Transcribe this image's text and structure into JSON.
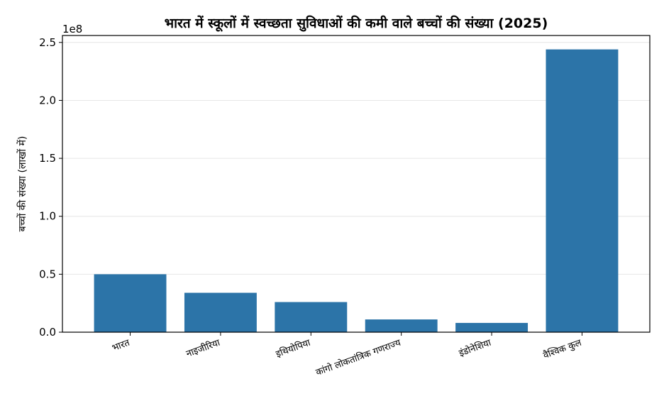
{
  "chart_data": {
    "type": "bar",
    "title": "भारत में स्कूलों में स्वच्छता सुविधाओं की कमी वाले बच्चों की संख्या (2025)",
    "xlabel": "",
    "ylabel": "बच्चों की संख्या (लाखों में)",
    "y_offset_text": "1e8",
    "categories": [
      "भारत",
      "नाइजीरिया",
      "इथियोपिया",
      "कांगो लोकतांत्रिक गणराज्य",
      "इंडोनेशिया",
      "वैश्विक कुल"
    ],
    "values": [
      50000000,
      34000000,
      26000000,
      11000000,
      8000000,
      244000000
    ],
    "ylim": [
      0,
      256000000
    ],
    "yticks": [
      0,
      50000000,
      100000000,
      150000000,
      200000000,
      250000000
    ],
    "ytick_labels": [
      "0.0",
      "0.5",
      "1.0",
      "1.5",
      "2.0",
      "2.5"
    ],
    "grid": true,
    "bar_color": "#2c74a8"
  }
}
